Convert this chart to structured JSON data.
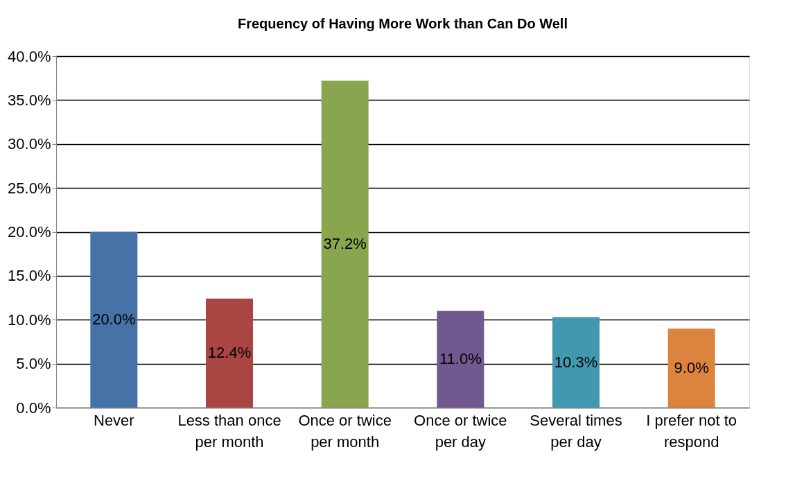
{
  "chart_data": {
    "type": "bar",
    "title": "Frequency of Having More Work than Can Do Well",
    "categories": [
      "Never",
      "Less than once per month",
      "Once or twice per month",
      "Once or twice per day",
      "Several times per day",
      "I prefer not to respond"
    ],
    "values": [
      20.0,
      12.4,
      37.2,
      11.0,
      10.3,
      9.0
    ],
    "colors": [
      "#4672a8",
      "#a94643",
      "#89a54e",
      "#71588f",
      "#4198af",
      "#db843d"
    ],
    "value_labels": [
      "20.0%",
      "12.4%",
      "37.2%",
      "11.0%",
      "10.3%",
      "9.0%"
    ],
    "ylim": [
      0,
      40
    ],
    "yticks": [
      {
        "value": 0,
        "label": "0.0%"
      },
      {
        "value": 5,
        "label": "5.0%"
      },
      {
        "value": 10,
        "label": "10.0%"
      },
      {
        "value": 15,
        "label": "15.0%"
      },
      {
        "value": 20,
        "label": "20.0%"
      },
      {
        "value": 25,
        "label": "25.0%"
      },
      {
        "value": 30,
        "label": "30.0%"
      },
      {
        "value": 35,
        "label": "35.0%"
      },
      {
        "value": 40,
        "label": "40.0%"
      }
    ],
    "grid": "y",
    "legend": false
  }
}
